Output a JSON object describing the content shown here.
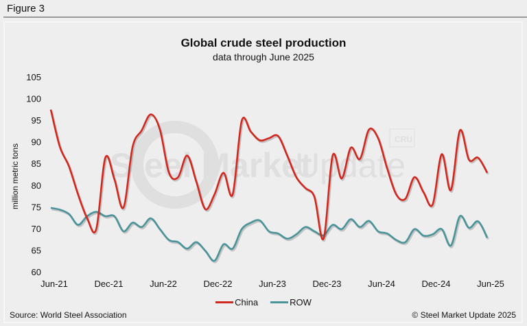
{
  "figure_label": "Figure 3",
  "source": "Source: World Steel Association",
  "copyright": "© Steel Market Update 2025",
  "watermark": "Steel Market Update",
  "watermark_badge": "CRU",
  "chart_data": {
    "type": "line",
    "title": "Global crude steel production",
    "subtitle": "data through June 2025",
    "ylabel": "million metric tons",
    "xlabel": "",
    "ylim": [
      60,
      105
    ],
    "yticks": [
      60,
      65,
      70,
      75,
      80,
      85,
      90,
      95,
      100,
      105
    ],
    "xtick_labels": [
      "Jun-21",
      "Dec-21",
      "Jun-22",
      "Dec-22",
      "Jun-23",
      "Dec-23",
      "Jun-24",
      "Dec-24",
      "Jun-25"
    ],
    "x_range": [
      "Jun-21",
      "Jun-25"
    ],
    "frequency": "monthly",
    "grid": false,
    "legend_position": "bottom",
    "series": [
      {
        "name": "China",
        "color": "#d0281f",
        "values": [
          97.6,
          89,
          84.5,
          78,
          72.5,
          70,
          86.5,
          81.5,
          75,
          89,
          92.8,
          96.5,
          93,
          83,
          82,
          87,
          81,
          74.6,
          78,
          83,
          78,
          95,
          92.5,
          90.5,
          91,
          91.5,
          87,
          82,
          79.5,
          77.4,
          67.8,
          87,
          81.7,
          88.8,
          86.2,
          93,
          91,
          84,
          78,
          77,
          82,
          78.5,
          75.7,
          87.3,
          79,
          92.8,
          86,
          86.5,
          83
        ]
      },
      {
        "name": "ROW",
        "color": "#4a9399",
        "values": [
          74.9,
          74.5,
          73.5,
          71,
          73,
          74,
          73,
          73,
          69.5,
          71.5,
          70.5,
          72.5,
          70,
          67.5,
          67,
          65.5,
          67,
          65,
          62.7,
          66.5,
          65.5,
          70,
          71.5,
          72,
          69.5,
          69,
          67.8,
          68.8,
          70.5,
          69.5,
          68.6,
          71,
          70,
          72.3,
          70.5,
          71.9,
          69.5,
          69,
          67.5,
          67,
          70,
          68.5,
          68.8,
          70,
          66.2,
          73,
          70.3,
          71.8,
          68
        ]
      }
    ]
  }
}
